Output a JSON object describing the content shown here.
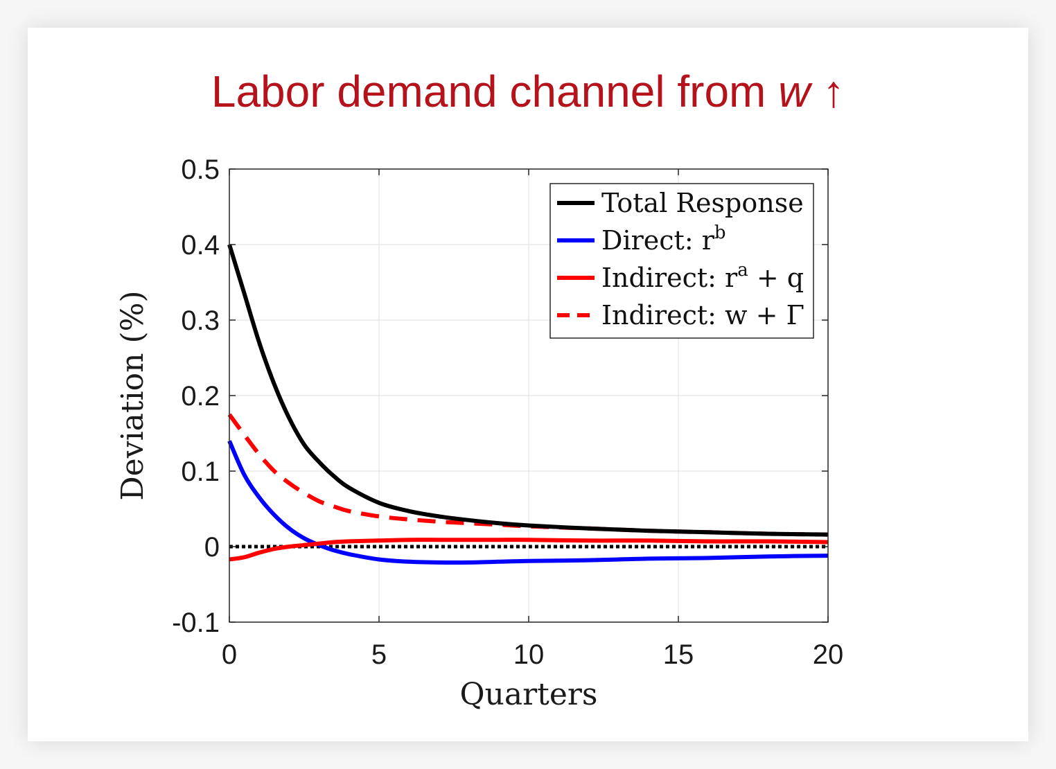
{
  "slide": {
    "title_text": "Labor demand channel from ",
    "title_var": "w",
    "title_arrow": "↑",
    "title_color": "#b5121b"
  },
  "chart_data": {
    "type": "line",
    "xlabel": "Quarters",
    "ylabel": "Deviation (%)",
    "xlim": [
      0,
      20
    ],
    "ylim": [
      -0.1,
      0.5
    ],
    "xticks": [
      0,
      5,
      10,
      15,
      20
    ],
    "xtick_labels": [
      "0",
      "5",
      "10",
      "15",
      "20"
    ],
    "yticks": [
      -0.1,
      0,
      0.1,
      0.2,
      0.3,
      0.4,
      0.5
    ],
    "ytick_labels": [
      "-0.1",
      "0",
      "0.1",
      "0.2",
      "0.3",
      "0.4",
      "0.5"
    ],
    "grid": true,
    "legend_position": "top-right",
    "x": [
      0,
      0.5,
      1,
      1.5,
      2,
      2.5,
      3,
      3.5,
      4,
      5,
      6,
      7,
      8,
      9,
      10,
      12,
      14,
      16,
      18,
      20
    ],
    "series": [
      {
        "name": "Total Response",
        "legend_main": "Total Response",
        "color": "#000000",
        "dash": "solid",
        "values": [
          0.4,
          0.335,
          0.27,
          0.215,
          0.17,
          0.135,
          0.112,
          0.093,
          0.078,
          0.058,
          0.047,
          0.04,
          0.035,
          0.031,
          0.028,
          0.024,
          0.021,
          0.019,
          0.017,
          0.016
        ]
      },
      {
        "name": "Direct: r^b",
        "legend_main": "Direct: r",
        "legend_sup": "b",
        "color": "#0000ff",
        "dash": "solid",
        "values": [
          0.14,
          0.095,
          0.065,
          0.042,
          0.024,
          0.011,
          0.002,
          -0.005,
          -0.01,
          -0.017,
          -0.02,
          -0.021,
          -0.021,
          -0.02,
          -0.019,
          -0.018,
          -0.016,
          -0.015,
          -0.013,
          -0.012
        ]
      },
      {
        "name": "Indirect: r^a + q",
        "legend_main": "Indirect: r",
        "legend_sup": "a",
        "legend_tail": " + q",
        "color": "#ff0000",
        "dash": "solid",
        "values": [
          -0.017,
          -0.014,
          -0.008,
          -0.003,
          0.0,
          0.002,
          0.004,
          0.006,
          0.007,
          0.008,
          0.009,
          0.009,
          0.009,
          0.009,
          0.009,
          0.008,
          0.008,
          0.007,
          0.007,
          0.006
        ]
      },
      {
        "name": "Indirect: w + Γ",
        "legend_main": "Indirect: w + Γ",
        "color": "#ff0000",
        "dash": "dashed",
        "values": [
          0.175,
          0.148,
          0.122,
          0.1,
          0.084,
          0.071,
          0.06,
          0.053,
          0.047,
          0.04,
          0.036,
          0.033,
          0.031,
          0.029,
          0.027,
          0.024,
          0.021,
          0.019,
          0.017,
          0.016
        ]
      },
      {
        "name": "zero line",
        "color": "#000000",
        "dash": "dotted",
        "values": [
          0,
          0,
          0,
          0,
          0,
          0,
          0,
          0,
          0,
          0,
          0,
          0,
          0,
          0,
          0,
          0,
          0,
          0,
          0,
          0
        ]
      }
    ]
  }
}
